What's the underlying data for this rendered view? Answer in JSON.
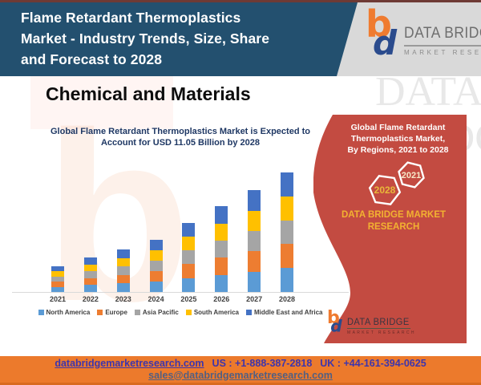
{
  "header": {
    "title_lines": [
      "Flame Retardant Thermoplastics",
      "Market - Industry Trends, Size, Share",
      "and Forecast to 2028"
    ],
    "logo": {
      "brand": "DATA BRIDGE",
      "tagline": "MARKET RESEARCH",
      "icon": "data-bridge-bd-monogram"
    }
  },
  "main": {
    "section_title": "Chemical and Materials"
  },
  "chart_data": {
    "type": "bar",
    "stacked": true,
    "title": "Global Flame Retardant Thermoplastics Market is Expected to Account for  USD 11.05 Billion by 2028",
    "title_lines": [
      "Global Flame Retardant Thermoplastics Market is Expected to",
      "Account for  USD 11.05 Billion by 2028"
    ],
    "categories": [
      "2021",
      "2022",
      "2023",
      "2024",
      "2025",
      "2026",
      "2027",
      "2028"
    ],
    "series": [
      {
        "name": "North America",
        "color": "#5b9bd5",
        "values": [
          0.48,
          0.64,
          0.78,
          0.96,
          1.28,
          1.58,
          1.88,
          2.21
        ]
      },
      {
        "name": "Europe",
        "color": "#ed7d31",
        "values": [
          0.48,
          0.64,
          0.78,
          0.96,
          1.28,
          1.58,
          1.88,
          2.21
        ]
      },
      {
        "name": "Asia Pacific",
        "color": "#a5a5a5",
        "values": [
          0.48,
          0.64,
          0.78,
          0.96,
          1.28,
          1.58,
          1.88,
          2.21
        ]
      },
      {
        "name": "South America",
        "color": "#ffc000",
        "values": [
          0.48,
          0.64,
          0.78,
          0.96,
          1.28,
          1.58,
          1.88,
          2.21
        ]
      },
      {
        "name": "Middle East and Africa",
        "color": "#4472c4",
        "values": [
          0.48,
          0.64,
          0.78,
          0.96,
          1.28,
          1.58,
          1.88,
          2.21
        ]
      }
    ],
    "totals_usd_billion_est": [
      2.4,
      3.2,
      3.9,
      4.8,
      6.4,
      7.9,
      9.4,
      11.05
    ],
    "ylim": [
      0,
      12
    ],
    "xlabel": "",
    "ylabel": "",
    "grid": false,
    "legend_position": "bottom"
  },
  "side_panel": {
    "bg_color": "#c34b41",
    "heading_lines": [
      "Global Flame Retardant",
      "Thermoplastics Market,",
      "By Regions, 2021 to 2028"
    ],
    "hexagons": [
      "2021",
      "2028"
    ],
    "brand_lines": [
      "DATA BRIDGE MARKET",
      "RESEARCH"
    ],
    "logo": {
      "brand": "DATA BRIDGE",
      "tagline": "MARKET RESEARCH",
      "icon": "data-bridge-bd-monogram"
    }
  },
  "footer": {
    "bg_color": "#ec7a2c",
    "website": "databridgemarketresearch.com",
    "phone_us": "US : +1-888-387-2818",
    "phone_uk": "UK : +44-161-394-0625",
    "email": "sales@databridgemarketresearch.com"
  },
  "watermark": {
    "background_letters": "DATA BRIDGE",
    "background_glyph": "b"
  },
  "colors": {
    "header_bg": "#23506f",
    "accent_orange": "#ef7b30",
    "accent_navy": "#2a4b8d",
    "panel_red": "#c34b41",
    "panel_gold": "#f2b231"
  }
}
